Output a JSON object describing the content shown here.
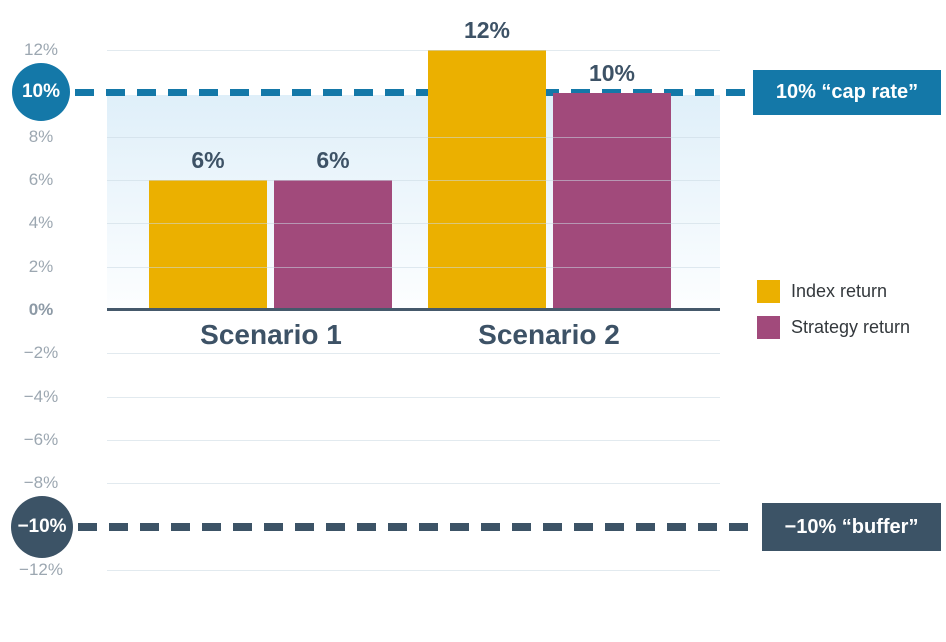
{
  "chart_data": {
    "type": "bar",
    "title": "",
    "xlabel": "",
    "ylabel": "",
    "categories": [
      "Scenario 1",
      "Scenario 2"
    ],
    "series": [
      {
        "name": "Index return",
        "color": "#EBB000",
        "values": [
          6,
          12
        ],
        "value_labels": [
          "6%",
          "12%"
        ]
      },
      {
        "name": "Strategy return",
        "color": "#A14A7B",
        "values": [
          6,
          10
        ],
        "value_labels": [
          "6%",
          "10%"
        ]
      }
    ],
    "ylim": [
      -12,
      12
    ],
    "grid": true,
    "legend_position": "right",
    "yticks": [
      {
        "value": 12,
        "label": "12%",
        "grid": true,
        "bold": false
      },
      {
        "value": 10,
        "label": "",
        "grid": false,
        "bold": false
      },
      {
        "value": 8,
        "label": "8%",
        "grid": true,
        "bold": false
      },
      {
        "value": 6,
        "label": "6%",
        "grid": true,
        "bold": false
      },
      {
        "value": 4,
        "label": "4%",
        "grid": true,
        "bold": false
      },
      {
        "value": 2,
        "label": "2%",
        "grid": true,
        "bold": false
      },
      {
        "value": 0,
        "label": "0%",
        "grid": false,
        "bold": true
      },
      {
        "value": -2,
        "label": "−2%",
        "grid": true,
        "bold": false
      },
      {
        "value": -4,
        "label": "−4%",
        "grid": true,
        "bold": false
      },
      {
        "value": -6,
        "label": "−6%",
        "grid": true,
        "bold": false
      },
      {
        "value": -8,
        "label": "−8%",
        "grid": true,
        "bold": false
      },
      {
        "value": -10,
        "label": "",
        "grid": false,
        "bold": false
      },
      {
        "value": -12,
        "label": "−12%",
        "grid": true,
        "bold": false
      }
    ],
    "plot_shade": {
      "from": 0,
      "to": 10,
      "top_color": "#DFEFF9",
      "bottom_color": "#FDFEFF"
    },
    "annotations": [
      {
        "id": "cap-rate",
        "value": 10,
        "badge": "10%",
        "label": "10% “cap rate”",
        "color": "#1478A8",
        "style": "dashed"
      },
      {
        "id": "buffer",
        "value": -10,
        "badge": "−10%",
        "label": "−10% “buffer”",
        "color": "#3C5366",
        "style": "dashed"
      }
    ],
    "text_color": "#3D5266",
    "axis_color": "#45596B"
  }
}
